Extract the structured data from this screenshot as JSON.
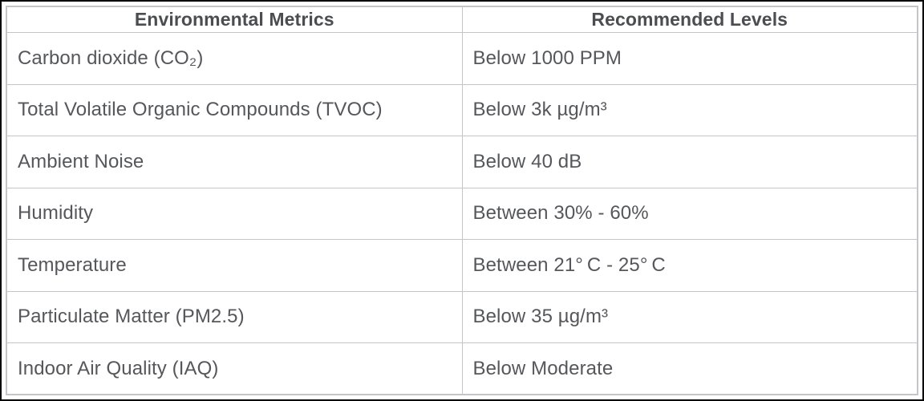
{
  "table": {
    "columns": [
      {
        "label": "Environmental Metrics"
      },
      {
        "label": "Recommended Levels"
      }
    ],
    "rows": [
      {
        "metric": "Carbon dioxide (CO₂)",
        "level": "Below 1000 PPM"
      },
      {
        "metric": "Total Volatile Organic Compounds (TVOC)",
        "level": "Below 3k µg/m³"
      },
      {
        "metric": "Ambient Noise",
        "level": "Below 40 dB"
      },
      {
        "metric": "Humidity",
        "level": "Between 30% - 60%"
      },
      {
        "metric": "Temperature",
        "level": "Between 21° C - 25° C"
      },
      {
        "metric": "Particulate Matter (PM2.5)",
        "level": "Below 35 µg/m³"
      },
      {
        "metric": "Indoor Air Quality (IAQ)",
        "level": "Below Moderate"
      }
    ],
    "colors": {
      "frame_border": "#000000",
      "grid_border": "#c4c5c9",
      "header_text": "#4c4d51",
      "body_text": "#56575b",
      "cell_background": "#ffffff"
    }
  }
}
